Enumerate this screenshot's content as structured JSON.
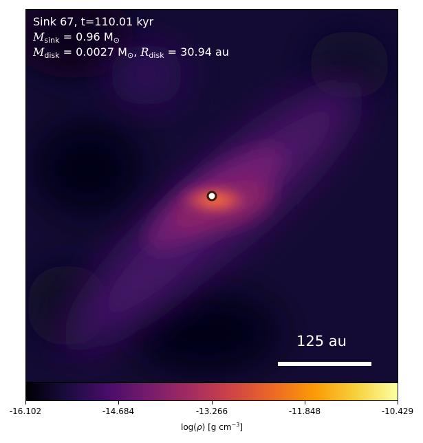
{
  "annotations": {
    "line1": "Sink 67, t=110.01 kyr",
    "line2_sym": "M",
    "line2_sub": "sink",
    "line2_rest": " = 0.96 M",
    "line2_sun": "⊙",
    "line3_sym": "M",
    "line3_sub": "disk",
    "line3_rest": " = 0.0027 M",
    "line3_sun": "⊙",
    "line3_sep": ", ",
    "line3_sym2": "R",
    "line3_sub2": "disk",
    "line3_rest2": " = 30.94 au"
  },
  "scale_bar": {
    "label": "125 au"
  },
  "colorbar": {
    "colormap": "inferno",
    "ticks": [
      "-16.102",
      "-14.684",
      "-13.266",
      "-11.848",
      "-10.429"
    ],
    "label_pre": "log(",
    "label_rho": "ρ",
    "label_mid": ") [g cm",
    "label_exp": "−3",
    "label_post": "]",
    "colors": [
      "#000004",
      "#1b0c41",
      "#4a0c6b",
      "#781c6d",
      "#a52c60",
      "#cf4446",
      "#ed6925",
      "#fb9b06",
      "#f7d13d",
      "#fcffa4"
    ]
  },
  "sink_marker": {
    "fill": "#ffffff",
    "ring": "#3a1a0a"
  }
}
